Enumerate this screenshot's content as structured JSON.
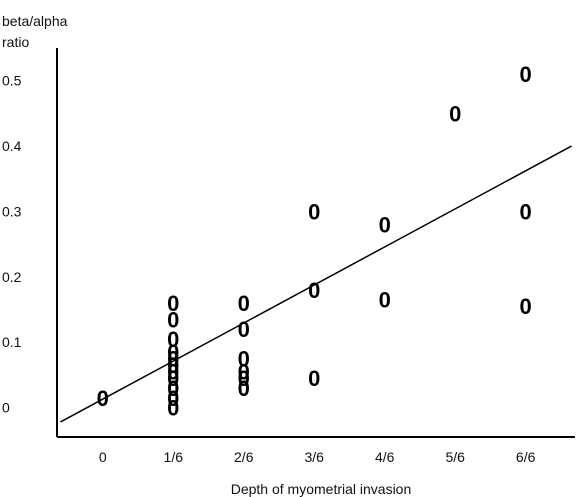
{
  "chart_data": {
    "type": "scatter",
    "title": "",
    "xlabel": "Depth of myometrial invasion",
    "ylabel_lines": [
      "beta/alpha",
      "ratio"
    ],
    "categories": [
      "0",
      "1/6",
      "2/6",
      "3/6",
      "4/6",
      "5/6",
      "6/6"
    ],
    "xlim": [
      -0.65,
      6.7
    ],
    "ylim": [
      -0.045,
      0.55
    ],
    "yticks": [
      0,
      0.1,
      0.2,
      0.3,
      0.4,
      0.5
    ],
    "ytick_labels": [
      "0",
      "0.1",
      "0.2",
      "0.3",
      "0.4",
      "0.5"
    ],
    "marker": "0",
    "grid": false,
    "points": [
      {
        "x": 0,
        "y": 0.015
      },
      {
        "x": 1,
        "y": 0.16
      },
      {
        "x": 1,
        "y": 0.135
      },
      {
        "x": 1,
        "y": 0.105
      },
      {
        "x": 1,
        "y": 0.085
      },
      {
        "x": 1,
        "y": 0.075
      },
      {
        "x": 1,
        "y": 0.065
      },
      {
        "x": 1,
        "y": 0.055
      },
      {
        "x": 1,
        "y": 0.045
      },
      {
        "x": 1,
        "y": 0.03
      },
      {
        "x": 1,
        "y": 0.015
      },
      {
        "x": 1,
        "y": 0.0
      },
      {
        "x": 2,
        "y": 0.16
      },
      {
        "x": 2,
        "y": 0.12
      },
      {
        "x": 2,
        "y": 0.075
      },
      {
        "x": 2,
        "y": 0.055
      },
      {
        "x": 2,
        "y": 0.045
      },
      {
        "x": 2,
        "y": 0.03
      },
      {
        "x": 3,
        "y": 0.3
      },
      {
        "x": 3,
        "y": 0.18
      },
      {
        "x": 3,
        "y": 0.045
      },
      {
        "x": 4,
        "y": 0.28
      },
      {
        "x": 4,
        "y": 0.165
      },
      {
        "x": 5,
        "y": 0.45
      },
      {
        "x": 6,
        "y": 0.51
      },
      {
        "x": 6,
        "y": 0.3
      },
      {
        "x": 6,
        "y": 0.155
      }
    ],
    "trend_line": {
      "x": [
        -0.6,
        6.65
      ],
      "y": [
        -0.022,
        0.4
      ]
    }
  }
}
